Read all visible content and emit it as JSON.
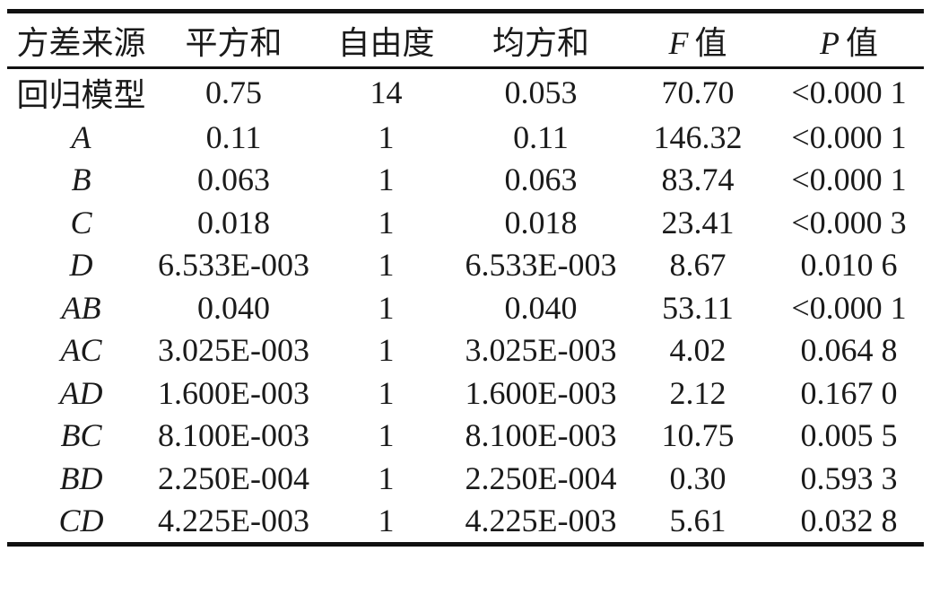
{
  "page": {
    "background_color": "#ffffff",
    "text_color": "#1a1a1a",
    "rule_color": "#111111"
  },
  "table": {
    "kind": "anova-three-line-table",
    "header": {
      "source": "方差来源",
      "sum_of_squares": "平方和",
      "degrees_of_freedom": "自由度",
      "mean_square": "均方和",
      "f_symbol": "F",
      "f_suffix": "值",
      "p_symbol": "P",
      "p_suffix": "值"
    },
    "rows": [
      {
        "source": "回归模型",
        "ss": "0.75",
        "df": "14",
        "ms": "0.053",
        "f": "70.70",
        "p": "<0.000 1"
      },
      {
        "source": "A",
        "ss": "0.11",
        "df": "1",
        "ms": "0.11",
        "f": "146.32",
        "p": "<0.000 1"
      },
      {
        "source": "B",
        "ss": "0.063",
        "df": "1",
        "ms": "0.063",
        "f": "83.74",
        "p": "<0.000 1"
      },
      {
        "source": "C",
        "ss": "0.018",
        "df": "1",
        "ms": "0.018",
        "f": "23.41",
        "p": "<0.000 3"
      },
      {
        "source": "D",
        "ss": "6.533E-003",
        "df": "1",
        "ms": "6.533E-003",
        "f": "8.67",
        "p": "0.010 6"
      },
      {
        "source": "AB",
        "ss": "0.040",
        "df": "1",
        "ms": "0.040",
        "f": "53.11",
        "p": "<0.000 1"
      },
      {
        "source": "AC",
        "ss": "3.025E-003",
        "df": "1",
        "ms": "3.025E-003",
        "f": "4.02",
        "p": "0.064 8"
      },
      {
        "source": "AD",
        "ss": "1.600E-003",
        "df": "1",
        "ms": "1.600E-003",
        "f": "2.12",
        "p": "0.167 0"
      },
      {
        "source": "BC",
        "ss": "8.100E-003",
        "df": "1",
        "ms": "8.100E-003",
        "f": "10.75",
        "p": "0.005 5"
      },
      {
        "source": "BD",
        "ss": "2.250E-004",
        "df": "1",
        "ms": "2.250E-004",
        "f": "0.30",
        "p": "0.593 3"
      },
      {
        "source": "CD",
        "ss": "4.225E-003",
        "df": "1",
        "ms": "4.225E-003",
        "f": "5.61",
        "p": "0.032 8"
      }
    ]
  }
}
